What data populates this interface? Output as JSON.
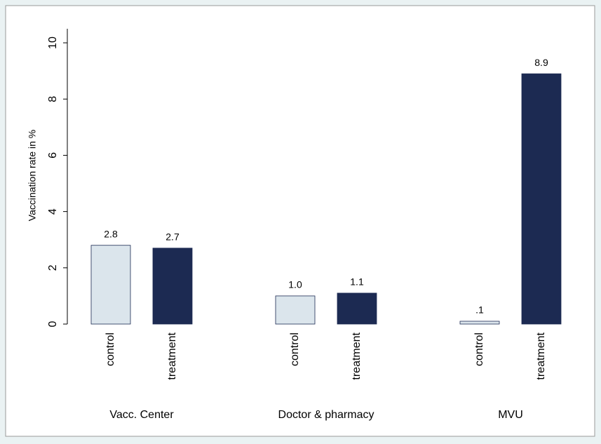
{
  "chart_data": {
    "type": "bar",
    "ylabel": "Vaccination rate in %",
    "categories": [
      "Vacc. Center",
      "Doctor & pharmacy",
      "MVU"
    ],
    "series": [
      {
        "name": "control",
        "color": "#dbe5ec",
        "values": [
          2.8,
          1.0,
          0.1
        ],
        "value_labels": [
          "2.8",
          "1.0",
          ".1"
        ]
      },
      {
        "name": "treatment",
        "color": "#1c2a52",
        "values": [
          2.7,
          1.1,
          8.9
        ],
        "value_labels": [
          "2.7",
          "1.1",
          "8.9"
        ]
      }
    ],
    "ylim": [
      0,
      10.5
    ],
    "yticks": [
      0,
      2,
      4,
      6,
      8,
      10
    ]
  }
}
